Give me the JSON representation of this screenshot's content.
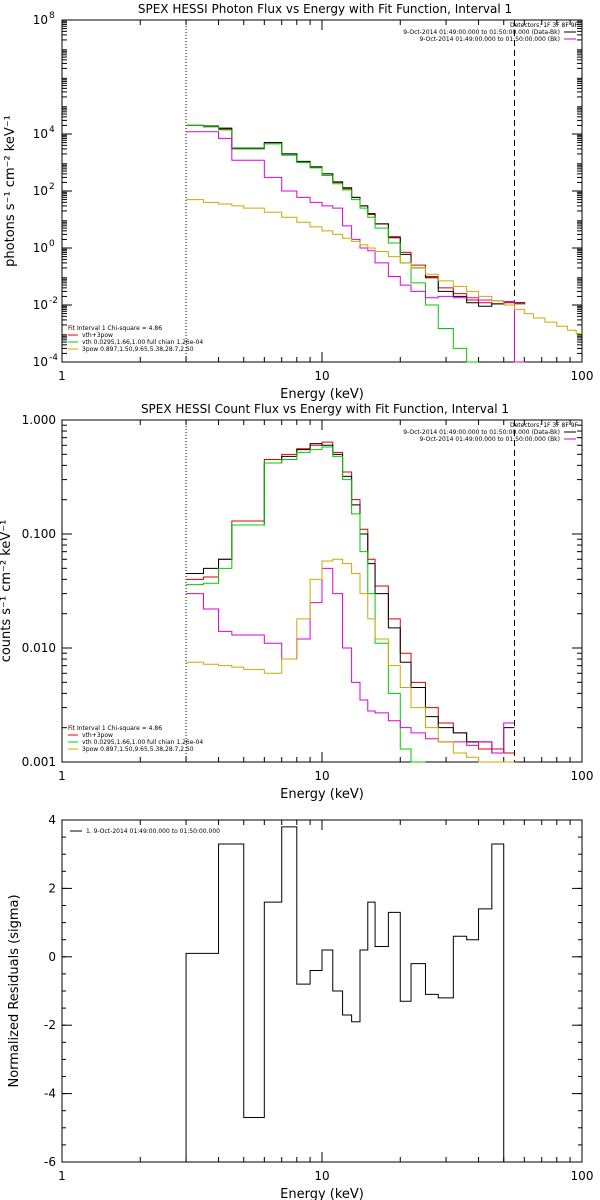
{
  "chart_data": [
    {
      "type": "line",
      "title": "SPEX HESSI Photon Flux vs Energy with Fit Function, Interval 1",
      "xlabel": "Energy (keV)",
      "ylabel": "photons s⁻¹ cm⁻² keV⁻¹",
      "xscale": "log",
      "yscale": "log",
      "xlim": [
        1,
        100
      ],
      "ylim": [
        0.0001,
        100000000
      ],
      "x_ticks": [
        {
          "v": 1,
          "label": "1"
        },
        {
          "v": 10,
          "label": "10"
        },
        {
          "v": 100,
          "label": "100"
        }
      ],
      "y_ticks": [
        {
          "v": 0.0001,
          "label": "10",
          "exp": "-4"
        },
        {
          "v": 0.01,
          "label": "10",
          "exp": "-2"
        },
        {
          "v": 1,
          "label": "10",
          "exp": "0"
        },
        {
          "v": 100,
          "label": "10",
          "exp": "2"
        },
        {
          "v": 10000,
          "label": "10",
          "exp": "4"
        },
        {
          "v": 100000000,
          "label": "10",
          "exp": "8"
        }
      ],
      "vlines": [
        {
          "x": 3.0,
          "style": "dotted",
          "color": "#000000"
        },
        {
          "x": 55.0,
          "style": "dashed",
          "color": "#000000"
        }
      ],
      "legend_top": {
        "detectors": "Detectors: 1F 3F 8F 9F",
        "entries": [
          {
            "text": "9-Oct-2014 01:49:00.000 to 01:50:00.000 (Data-Bk)",
            "color": "#000000"
          },
          {
            "text": "9-Oct-2014 01:49:00.000 to 01:50:00.000 (Bk)",
            "color": "#dd00dd"
          }
        ]
      },
      "legend_bottom": {
        "header": "Fit Interval 1   Chi-square = 4.86",
        "entries": [
          {
            "text": "vth+3pow",
            "color": "#dd0000"
          },
          {
            "text": "vth 0.0295,1.66,1.00  full chian 1.26e-04",
            "color": "#00cc00"
          },
          {
            "text": "3pow 0.897,1.50,9.65,5.38,28.7,2.50",
            "color": "#ccaa00"
          }
        ]
      },
      "edges": [
        3.0,
        3.5,
        4.0,
        4.5,
        5.0,
        6.0,
        7.0,
        8.0,
        9.0,
        10.0,
        11.0,
        12.0,
        13.0,
        14.0,
        15.0,
        16.0,
        18.0,
        20.0,
        22.0,
        25.0,
        28.0,
        32.0,
        36.0,
        40.0,
        45.0,
        50.0,
        55.0
      ],
      "series": [
        {
          "name": "vth+3pow",
          "color": "#dd0000",
          "x0": 3.0,
          "values": [
            20000,
            18000,
            15000,
            3000,
            3000,
            5000,
            2000,
            1000,
            700,
            400,
            200,
            120,
            60,
            30,
            15,
            7,
            2.5,
            0.7,
            0.25,
            0.1,
            0.04,
            0.025,
            0.015,
            0.012,
            0.011,
            0.012,
            0.011
          ]
        },
        {
          "name": "Data-Bk",
          "color": "#000000",
          "x0": 3.0,
          "values": [
            20000,
            19000,
            16000,
            3200,
            3200,
            5000,
            2000,
            1100,
            700,
            400,
            210,
            130,
            60,
            30,
            16,
            7,
            2.3,
            0.6,
            0.2,
            0.09,
            0.03,
            0.02,
            0.012,
            0.009,
            0.011,
            0.013,
            0.012
          ]
        },
        {
          "name": "vth",
          "color": "#00cc00",
          "x0": 3.0,
          "values": [
            20000,
            18000,
            14000,
            3000,
            3000,
            4500,
            1800,
            1000,
            650,
            350,
            180,
            110,
            50,
            25,
            12,
            5,
            1.5,
            0.3,
            0.06,
            0.01,
            0.0015,
            0.0003,
            8e-05
          ]
        },
        {
          "name": "Bk",
          "color": "#dd00dd",
          "x0": 3.0,
          "values": [
            12000,
            12000,
            7000,
            1200,
            1200,
            300,
            100,
            60,
            40,
            30,
            25,
            6,
            2,
            1,
            0.8,
            0.3,
            0.1,
            0.05,
            0.03,
            0.018,
            0.02,
            0.018,
            0.018,
            0.015,
            0.014,
            0.013,
            0.0001
          ]
        },
        {
          "name": "3pow",
          "color": "#ccaa00",
          "x0": 3.0,
          "values": [
            50,
            40,
            35,
            30,
            25,
            18,
            12,
            8,
            5.5,
            4,
            3,
            2.2,
            1.7,
            1.3,
            1.0,
            0.75,
            0.5,
            0.3,
            0.2,
            0.12,
            0.07,
            0.045,
            0.03,
            0.02,
            0.014,
            0.01,
            0.007,
            0.005,
            0.0035,
            0.0025,
            0.0018,
            0.0013,
            0.001
          ],
          "edges": [
            3.0,
            3.5,
            4.0,
            4.5,
            5.0,
            6.0,
            7.0,
            8.0,
            9.0,
            10.0,
            11.0,
            12.0,
            13.0,
            14.0,
            15.0,
            16.0,
            18.0,
            20.0,
            22.0,
            25.0,
            28.0,
            32.0,
            36.0,
            40.0,
            45.0,
            50.0,
            55.0,
            60.0,
            65.0,
            72.0,
            80.0,
            88.0,
            95.0,
            100.0
          ]
        }
      ]
    },
    {
      "type": "line",
      "title": "SPEX HESSI Count Flux vs Energy with Fit Function, Interval 1",
      "xlabel": "Energy (keV)",
      "ylabel": "counts s⁻¹ cm⁻² keV⁻¹",
      "xscale": "log",
      "yscale": "log",
      "xlim": [
        1,
        100
      ],
      "ylim": [
        0.001,
        1.0
      ],
      "x_ticks": [
        {
          "v": 1,
          "label": "1"
        },
        {
          "v": 10,
          "label": "10"
        },
        {
          "v": 100,
          "label": "100"
        }
      ],
      "y_ticks": [
        {
          "v": 0.001,
          "label": "0.001"
        },
        {
          "v": 0.01,
          "label": "0.010"
        },
        {
          "v": 0.1,
          "label": "0.100"
        },
        {
          "v": 1.0,
          "label": "1.000"
        }
      ],
      "vlines": [
        {
          "x": 3.0,
          "style": "dotted",
          "color": "#000000"
        },
        {
          "x": 55.0,
          "style": "dashed",
          "color": "#000000"
        }
      ],
      "legend_top": {
        "detectors": "Detectors: 1F 3F 8F 9F",
        "entries": [
          {
            "text": "9-Oct-2014 01:49:00.000 to 01:50:00.000 (Data-Bk)",
            "color": "#000000"
          },
          {
            "text": "9-Oct-2014 01:49:00.000 to 01:50:00.000 (Bk)",
            "color": "#dd00dd"
          }
        ]
      },
      "legend_bottom": {
        "header": "Fit Interval 1   Chi-square = 4.86",
        "entries": [
          {
            "text": "vth+3pow",
            "color": "#dd0000"
          },
          {
            "text": "vth 0.0295,1.66,1.00  full chian 1.26e-04",
            "color": "#00cc00"
          },
          {
            "text": "3pow 0.897,1.50,9.65,5.38,28.7,2.50",
            "color": "#ccaa00"
          }
        ]
      },
      "edges": [
        3.0,
        3.5,
        4.0,
        4.5,
        5.0,
        6.0,
        7.0,
        8.0,
        9.0,
        10.0,
        11.0,
        12.0,
        13.0,
        14.0,
        15.0,
        16.0,
        18.0,
        20.0,
        22.0,
        25.0,
        28.0,
        32.0,
        36.0,
        40.0,
        45.0,
        50.0,
        55.0
      ],
      "series": [
        {
          "name": "vth+3pow",
          "color": "#dd0000",
          "x0": 3.0,
          "values": [
            0.04,
            0.042,
            0.06,
            0.13,
            0.13,
            0.45,
            0.5,
            0.56,
            0.6,
            0.64,
            0.52,
            0.35,
            0.2,
            0.11,
            0.06,
            0.035,
            0.018,
            0.009,
            0.005,
            0.003,
            0.0022,
            0.0018,
            0.0015,
            0.0013,
            0.0013,
            0.0012
          ]
        },
        {
          "name": "Data-Bk",
          "color": "#000000",
          "x0": 3.0,
          "values": [
            0.045,
            0.05,
            0.06,
            0.12,
            0.12,
            0.42,
            0.48,
            0.55,
            0.62,
            0.6,
            0.5,
            0.32,
            0.18,
            0.1,
            0.055,
            0.03,
            0.015,
            0.0075,
            0.0045,
            0.0025,
            0.002,
            0.0018,
            0.0015,
            0.0015,
            0.0012,
            0.002
          ]
        },
        {
          "name": "vth",
          "color": "#00cc00",
          "x0": 3.0,
          "values": [
            0.036,
            0.037,
            0.05,
            0.12,
            0.12,
            0.42,
            0.45,
            0.52,
            0.55,
            0.58,
            0.48,
            0.3,
            0.15,
            0.07,
            0.03,
            0.011,
            0.004,
            0.0013,
            0.0008
          ]
        },
        {
          "name": "Bk",
          "color": "#dd00dd",
          "x0": 3.0,
          "values": [
            0.03,
            0.022,
            0.014,
            0.013,
            0.013,
            0.011,
            0.008,
            0.012,
            0.025,
            0.05,
            0.03,
            0.01,
            0.005,
            0.0035,
            0.0028,
            0.0027,
            0.0023,
            0.002,
            0.0018,
            0.0016,
            0.0015,
            0.0015,
            0.0014,
            0.0015,
            0.0012,
            0.0022
          ]
        },
        {
          "name": "3pow",
          "color": "#ccaa00",
          "x0": 3.0,
          "values": [
            0.0075,
            0.0072,
            0.007,
            0.0068,
            0.0065,
            0.006,
            0.008,
            0.018,
            0.04,
            0.058,
            0.06,
            0.055,
            0.045,
            0.03,
            0.018,
            0.012,
            0.007,
            0.0045,
            0.003,
            0.002,
            0.0015,
            0.0012,
            0.0011,
            0.001,
            0.001,
            0.001
          ]
        }
      ]
    },
    {
      "type": "line",
      "title": "",
      "xlabel": "Energy (keV)",
      "ylabel": "Normalized Residuals (sigma)",
      "xscale": "log",
      "yscale": "linear",
      "xlim": [
        1,
        100
      ],
      "ylim": [
        -6,
        4
      ],
      "x_ticks": [
        {
          "v": 1,
          "label": "1"
        },
        {
          "v": 10,
          "label": "10"
        },
        {
          "v": 100,
          "label": "100"
        }
      ],
      "y_ticks": [
        {
          "v": -6,
          "label": "-6"
        },
        {
          "v": -4,
          "label": "-4"
        },
        {
          "v": -2,
          "label": "-2"
        },
        {
          "v": 0,
          "label": "0"
        },
        {
          "v": 2,
          "label": "2"
        },
        {
          "v": 4,
          "label": "4"
        }
      ],
      "legend_top": {
        "detectors": "",
        "entries": [
          {
            "text": "1.  9-Oct-2014 01:49:00.000 to 01:50:00.000",
            "color": "#000000"
          }
        ]
      },
      "edges": [
        3.0,
        4.0,
        5.0,
        6.0,
        7.0,
        8.0,
        9.0,
        10.0,
        11.0,
        12.0,
        13.0,
        14.0,
        15.0,
        16.0,
        18.0,
        20.0,
        22.0,
        25.0,
        28.0,
        32.0,
        36.0,
        40.0,
        45.0,
        50.0,
        55.0
      ],
      "series": [
        {
          "name": "",
          "color": "#000000",
          "x0": 3.0,
          "values": [
            0.1,
            3.3,
            -4.7,
            1.6,
            3.8,
            -0.8,
            -0.4,
            0.2,
            -1.0,
            -1.7,
            -1.9,
            0.2,
            1.6,
            0.3,
            1.3,
            -1.3,
            -0.2,
            -1.1,
            -1.2,
            0.6,
            0.5,
            1.4,
            3.3,
            -6.0
          ]
        }
      ]
    }
  ]
}
